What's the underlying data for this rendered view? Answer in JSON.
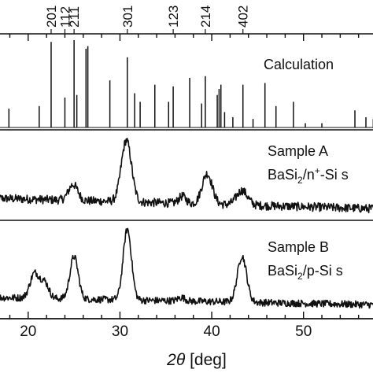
{
  "chart_data": {
    "type": "line",
    "xlabel_symbol": "2θ",
    "xlabel_unit": "[deg]",
    "xlim": [
      16.5,
      58.0
    ],
    "x_ticks": [
      20,
      30,
      40,
      50
    ],
    "x_tick_labels": [
      "20",
      "30",
      "40",
      "50"
    ],
    "top_hkl": [
      {
        "label": "201",
        "x": 22.5
      },
      {
        "label": "112",
        "x": 24.0
      },
      {
        "label": "211",
        "x": 25.0
      },
      {
        "label": "301",
        "x": 30.8
      },
      {
        "label": "123",
        "x": 35.8
      },
      {
        "label": "214",
        "x": 39.3
      },
      {
        "label": "402",
        "x": 43.4
      }
    ],
    "calculation": {
      "label": "Calculation",
      "peaks": [
        {
          "x": 17.9,
          "h": 0.22
        },
        {
          "x": 21.2,
          "h": 0.25
        },
        {
          "x": 22.5,
          "h": 1.0
        },
        {
          "x": 24.0,
          "h": 0.35
        },
        {
          "x": 25.0,
          "h": 1.02
        },
        {
          "x": 25.3,
          "h": 0.38
        },
        {
          "x": 26.3,
          "h": 0.92
        },
        {
          "x": 26.5,
          "h": 0.95
        },
        {
          "x": 28.9,
          "h": 0.55
        },
        {
          "x": 30.8,
          "h": 0.82
        },
        {
          "x": 31.6,
          "h": 0.4
        },
        {
          "x": 32.2,
          "h": 0.3
        },
        {
          "x": 33.8,
          "h": 0.5
        },
        {
          "x": 35.3,
          "h": 0.3
        },
        {
          "x": 35.8,
          "h": 0.48
        },
        {
          "x": 37.6,
          "h": 0.58
        },
        {
          "x": 38.9,
          "h": 0.28
        },
        {
          "x": 39.3,
          "h": 0.6
        },
        {
          "x": 40.6,
          "h": 0.38
        },
        {
          "x": 40.8,
          "h": 0.45
        },
        {
          "x": 41.0,
          "h": 0.5
        },
        {
          "x": 41.4,
          "h": 0.18
        },
        {
          "x": 42.3,
          "h": 0.12
        },
        {
          "x": 43.4,
          "h": 0.5
        },
        {
          "x": 44.5,
          "h": 0.1
        },
        {
          "x": 45.8,
          "h": 0.52
        },
        {
          "x": 47.0,
          "h": 0.25
        },
        {
          "x": 48.9,
          "h": 0.3
        },
        {
          "x": 50.2,
          "h": 0.05
        },
        {
          "x": 52.0,
          "h": 0.05
        },
        {
          "x": 55.6,
          "h": 0.2
        },
        {
          "x": 56.8,
          "h": 0.12
        },
        {
          "x": 57.6,
          "h": 0.1
        }
      ]
    },
    "series": [
      {
        "label_line1": "Sample A",
        "label_line2_base": "BaSi",
        "label_line2_sub": "2",
        "label_line2_mid": "/n",
        "label_line2_sup": "+",
        "label_line2_end": "-Si s",
        "baseline": 0.12,
        "slope": -0.0035,
        "noise": 0.06,
        "peaks": [
          {
            "x": 24.9,
            "h": 0.22,
            "w": 0.5
          },
          {
            "x": 30.7,
            "h": 0.85,
            "w": 0.55
          },
          {
            "x": 36.8,
            "h": 0.1,
            "w": 0.4
          },
          {
            "x": 39.5,
            "h": 0.42,
            "w": 0.55
          },
          {
            "x": 43.3,
            "h": 0.2,
            "w": 0.6
          }
        ]
      },
      {
        "label_line1": "Sample B",
        "label_line2_base": "BaSi",
        "label_line2_sub": "2",
        "label_line2_mid": "/p-Si s",
        "label_line2_sup": "",
        "label_line2_end": "",
        "baseline": 0.1,
        "slope": -0.0025,
        "noise": 0.05,
        "peaks": [
          {
            "x": 20.7,
            "h": 0.35,
            "w": 0.5
          },
          {
            "x": 21.8,
            "h": 0.22,
            "w": 0.45
          },
          {
            "x": 25.0,
            "h": 0.6,
            "w": 0.45
          },
          {
            "x": 30.8,
            "h": 1.0,
            "w": 0.45
          },
          {
            "x": 36.7,
            "h": 0.05,
            "w": 0.4
          },
          {
            "x": 43.3,
            "h": 0.65,
            "w": 0.5
          }
        ]
      }
    ]
  }
}
